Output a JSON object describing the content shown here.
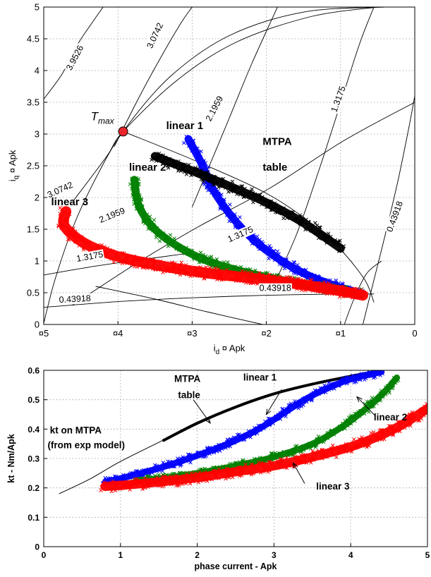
{
  "chart_data": [
    {
      "type": "scatter",
      "xlabel": "i_d Apk",
      "ylabel": "i_q Apk",
      "xlim": [
        -5,
        0
      ],
      "ylim": [
        0,
        5
      ],
      "grid": true,
      "x_tick_labels": [
        "¤5",
        "¤4",
        "¤3",
        "¤2",
        "¤1",
        "0"
      ],
      "y_tick_labels": [
        "0",
        "0.5",
        "1",
        "1.5",
        "2",
        "2.5",
        "3",
        "3.5",
        "4",
        "4.5",
        "5"
      ],
      "x_ticks": [
        -5,
        -4,
        -3,
        -2,
        -1,
        0
      ],
      "y_ticks": [
        0,
        0.5,
        1,
        1.5,
        2,
        2.5,
        3,
        3.5,
        4,
        4.5,
        5
      ],
      "contour_labels": [
        {
          "text": "3.9526",
          "x": -4.58,
          "y": 4.2,
          "angle": -62
        },
        {
          "text": "3.0742",
          "x": -3.5,
          "y": 4.55,
          "angle": -65
        },
        {
          "text": "2.1959",
          "x": -2.7,
          "y": 3.4,
          "angle": -62
        },
        {
          "text": "1.3175",
          "x": -1.03,
          "y": 3.55,
          "angle": -70
        },
        {
          "text": "0.43918",
          "x": -0.27,
          "y": 1.7,
          "angle": -70
        },
        {
          "text": "3.0742",
          "x": -4.78,
          "y": 2.12,
          "angle": -24
        },
        {
          "text": "2.1959",
          "x": -4.08,
          "y": 1.72,
          "angle": -22
        },
        {
          "text": "1.3175",
          "x": -2.35,
          "y": 1.42,
          "angle": -24
        },
        {
          "text": "1.3175",
          "x": -4.38,
          "y": 1.07,
          "angle": -10
        },
        {
          "text": "0.43918",
          "x": -1.88,
          "y": 0.57,
          "angle": 0
        },
        {
          "text": "0.43918",
          "x": -4.58,
          "y": 0.4,
          "angle": -3
        }
      ],
      "point": {
        "label": "T",
        "label_sub": "max",
        "x": -3.93,
        "y": 3.04,
        "color": "#e8252a"
      },
      "series": [
        {
          "name": "linear 1",
          "color": "#0000ff",
          "points": [
            [
              -3.05,
              2.92
            ],
            [
              -2.88,
              2.55
            ],
            [
              -2.73,
              2.15
            ],
            [
              -2.52,
              1.78
            ],
            [
              -2.25,
              1.42
            ],
            [
              -1.92,
              1.1
            ],
            [
              -1.52,
              0.82
            ],
            [
              -1.1,
              0.62
            ],
            [
              -0.72,
              0.49
            ]
          ]
        },
        {
          "name": "linear 2",
          "color": "#008000",
          "points": [
            [
              -3.78,
              2.28
            ],
            [
              -3.72,
              1.88
            ],
            [
              -3.52,
              1.52
            ],
            [
              -3.18,
              1.22
            ],
            [
              -2.75,
              0.98
            ],
            [
              -2.2,
              0.8
            ],
            [
              -1.6,
              0.66
            ],
            [
              -1.1,
              0.56
            ],
            [
              -0.72,
              0.48
            ]
          ]
        },
        {
          "name": "linear 3",
          "color": "#ff0000",
          "points": [
            [
              -4.7,
              1.78
            ],
            [
              -4.72,
              1.55
            ],
            [
              -4.45,
              1.28
            ],
            [
              -4.0,
              1.07
            ],
            [
              -3.4,
              0.92
            ],
            [
              -2.8,
              0.81
            ],
            [
              -2.2,
              0.73
            ],
            [
              -1.6,
              0.64
            ],
            [
              -1.1,
              0.55
            ],
            [
              -0.7,
              0.46
            ]
          ]
        },
        {
          "name": "MTPA table",
          "color": "#000000",
          "points": [
            [
              -3.5,
              2.65
            ],
            [
              -3.0,
              2.42
            ],
            [
              -2.5,
              2.18
            ],
            [
              -2.0,
              1.92
            ],
            [
              -1.5,
              1.6
            ],
            [
              -1.0,
              1.2
            ]
          ]
        }
      ],
      "annotations": [
        {
          "text": "linear 1",
          "x": -3.35,
          "y": 3.08
        },
        {
          "text": "MTPA",
          "x": -2.05,
          "y": 2.83
        },
        {
          "text": "table",
          "x": -2.05,
          "y": 2.42
        },
        {
          "text": "linear 2",
          "x": -3.85,
          "y": 2.42
        },
        {
          "text": "linear 3",
          "x": -4.9,
          "y": 1.88
        }
      ]
    },
    {
      "type": "line",
      "xlabel": "phase current - Apk",
      "ylabel": "kt - Nm/Apk",
      "xlim": [
        0,
        5
      ],
      "ylim": [
        0,
        0.6
      ],
      "grid": true,
      "x_ticks": [
        0,
        1,
        2,
        3,
        4,
        5
      ],
      "y_ticks": [
        0,
        0.1,
        0.2,
        0.3,
        0.4,
        0.5,
        0.6
      ],
      "x_tick_labels": [
        "0",
        "1",
        "2",
        "3",
        "4",
        "5"
      ],
      "y_tick_labels": [
        "0",
        "0.1",
        "0.2",
        "0.3",
        "0.4",
        "0.5",
        "0.6"
      ],
      "series": [
        {
          "name": "kt on MTPA (from exp model)",
          "color": "#000000",
          "points": [
            [
              0.2,
              0.18
            ],
            [
              0.6,
              0.23
            ],
            [
              1.0,
              0.29
            ],
            [
              1.5,
              0.355
            ],
            [
              2.0,
              0.42
            ],
            [
              2.5,
              0.475
            ],
            [
              3.0,
              0.52
            ],
            [
              3.5,
              0.555
            ],
            [
              4.0,
              0.58
            ],
            [
              4.4,
              0.6
            ]
          ]
        },
        {
          "name": "MTPA table",
          "color": "#000000",
          "points": [
            [
              1.55,
              0.36
            ],
            [
              2.0,
              0.42
            ],
            [
              2.5,
              0.475
            ],
            [
              3.0,
              0.52
            ],
            [
              3.5,
              0.553
            ],
            [
              4.0,
              0.58
            ],
            [
              4.4,
              0.6
            ]
          ]
        },
        {
          "name": "linear 1",
          "color": "#0000ff",
          "points": [
            [
              0.8,
              0.22
            ],
            [
              1.2,
              0.245
            ],
            [
              1.6,
              0.275
            ],
            [
              2.0,
              0.31
            ],
            [
              2.4,
              0.35
            ],
            [
              2.8,
              0.4
            ],
            [
              3.1,
              0.45
            ],
            [
              3.4,
              0.5
            ],
            [
              3.7,
              0.54
            ],
            [
              4.0,
              0.57
            ],
            [
              4.4,
              0.595
            ]
          ]
        },
        {
          "name": "linear 2",
          "color": "#008000",
          "points": [
            [
              1.2,
              0.225
            ],
            [
              1.6,
              0.235
            ],
            [
              2.0,
              0.25
            ],
            [
              2.5,
              0.275
            ],
            [
              3.0,
              0.305
            ],
            [
              3.5,
              0.35
            ],
            [
              3.9,
              0.41
            ],
            [
              4.2,
              0.47
            ],
            [
              4.45,
              0.53
            ],
            [
              4.6,
              0.575
            ]
          ]
        },
        {
          "name": "linear 3",
          "color": "#ff0000",
          "points": [
            [
              0.8,
              0.205
            ],
            [
              1.3,
              0.215
            ],
            [
              2.0,
              0.235
            ],
            [
              2.5,
              0.255
            ],
            [
              3.0,
              0.275
            ],
            [
              3.5,
              0.305
            ],
            [
              4.0,
              0.34
            ],
            [
              4.4,
              0.38
            ],
            [
              4.7,
              0.42
            ],
            [
              5.0,
              0.47
            ]
          ]
        }
      ],
      "annotations": [
        {
          "text": "MTPA",
          "x": 1.7,
          "y": 0.56
        },
        {
          "text": "table",
          "x": 1.75,
          "y": 0.505
        },
        {
          "text": "linear 1",
          "x": 2.6,
          "y": 0.565
        },
        {
          "text": "linear 2",
          "x": 4.3,
          "y": 0.43
        },
        {
          "text": "kt on MTPA",
          "x": 0.08,
          "y": 0.385
        },
        {
          "text": "(from exp model)",
          "x": 0.05,
          "y": 0.335
        },
        {
          "text": "linear 3",
          "x": 3.55,
          "y": 0.195
        }
      ]
    }
  ]
}
